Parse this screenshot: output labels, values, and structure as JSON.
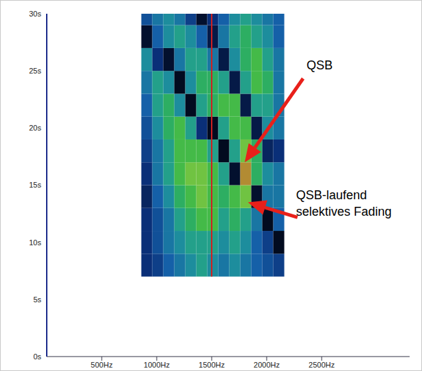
{
  "chart_data": {
    "type": "heatmap",
    "xlim": [
      0,
      3300
    ],
    "ylim": [
      0,
      30
    ],
    "xticks": [
      {
        "value": 500,
        "label": "500Hz"
      },
      {
        "value": 1000,
        "label": "1000Hz"
      },
      {
        "value": 1500,
        "label": "1500Hz"
      },
      {
        "value": 2000,
        "label": "2000Hz"
      },
      {
        "value": 2500,
        "label": "2500Hz"
      }
    ],
    "yticks": [
      {
        "value": 0,
        "label": "0s"
      },
      {
        "value": 5,
        "label": "5s"
      },
      {
        "value": 10,
        "label": "10s"
      },
      {
        "value": 15,
        "label": "15s"
      },
      {
        "value": 20,
        "label": "20s"
      },
      {
        "value": 25,
        "label": "25s"
      },
      {
        "value": 30,
        "label": "30s"
      }
    ],
    "reference_x": 1500,
    "x": [
      910,
      1010,
      1110,
      1210,
      1310,
      1410,
      1510,
      1610,
      1710,
      1810,
      1910,
      2010,
      2110
    ],
    "y": [
      8,
      10,
      12,
      14,
      16,
      18,
      20,
      22,
      24,
      26,
      28,
      30
    ],
    "cells": [
      [
        0.3,
        0.35,
        0.45,
        0.5,
        0.55,
        0.6,
        0.55,
        0.5,
        0.55,
        0.5,
        0.45,
        0.4,
        0.35
      ],
      [
        0.3,
        0.4,
        0.5,
        0.55,
        0.6,
        0.6,
        0.6,
        0.55,
        0.6,
        0.55,
        0.45,
        0.35,
        0.1
      ],
      [
        0.3,
        0.4,
        0.5,
        0.6,
        0.65,
        0.7,
        0.7,
        0.6,
        0.65,
        0.6,
        0.5,
        0.1,
        0.45
      ],
      [
        0.25,
        0.45,
        0.55,
        0.65,
        0.7,
        0.75,
        0.7,
        0.65,
        0.7,
        0.75,
        0.15,
        0.5,
        0.5
      ],
      [
        0.3,
        0.5,
        0.6,
        0.7,
        0.75,
        0.75,
        0.7,
        0.6,
        0.15,
        0.85,
        0.65,
        0.55,
        0.5
      ],
      [
        0.35,
        0.5,
        0.6,
        0.7,
        0.7,
        0.7,
        0.6,
        0.1,
        0.6,
        0.75,
        0.65,
        0.25,
        0.3
      ],
      [
        0.4,
        0.55,
        0.65,
        0.7,
        0.6,
        0.3,
        0.1,
        0.6,
        0.7,
        0.7,
        0.2,
        0.55,
        0.5
      ],
      [
        0.45,
        0.6,
        0.65,
        0.55,
        0.1,
        0.6,
        0.65,
        0.7,
        0.7,
        0.2,
        0.6,
        0.6,
        0.5
      ],
      [
        0.5,
        0.6,
        0.55,
        0.1,
        0.55,
        0.65,
        0.65,
        0.6,
        0.2,
        0.6,
        0.7,
        0.65,
        0.5
      ],
      [
        0.55,
        0.3,
        0.15,
        0.5,
        0.6,
        0.6,
        0.5,
        0.2,
        0.55,
        0.65,
        0.7,
        0.6,
        0.5
      ],
      [
        0.15,
        0.45,
        0.55,
        0.6,
        0.55,
        0.45,
        0.2,
        0.5,
        0.6,
        0.65,
        0.6,
        0.55,
        0.45
      ],
      [
        0.4,
        0.5,
        0.55,
        0.5,
        0.35,
        0.15,
        0.3,
        0.45,
        0.55,
        0.6,
        0.55,
        0.5,
        0.45
      ]
    ],
    "annotations": [
      {
        "text": [
          "QSB"
        ],
        "x": 1800,
        "y": 17
      },
      {
        "text": [
          "QSB-laufend",
          "selektives Fading"
        ],
        "x": 1830,
        "y": 13.5
      }
    ]
  }
}
